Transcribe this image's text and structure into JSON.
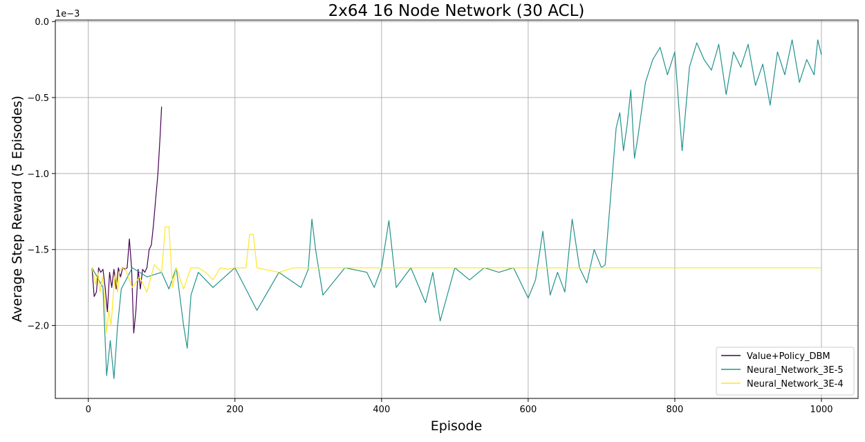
{
  "chart_data": {
    "type": "line",
    "title": "2x64 16 Node Network (30 ACL)",
    "xlabel": "Episode",
    "ylabel": "Average Step Reward (5 Episodes)",
    "y_offset_label": "1e−3",
    "xlim": [
      -45,
      1050
    ],
    "ylim": [
      -0.00248,
      1e-05
    ],
    "x_ticks": [
      0,
      200,
      400,
      600,
      800,
      1000
    ],
    "x_tick_labels": [
      "0",
      "200",
      "400",
      "600",
      "800",
      "1000"
    ],
    "y_ticks": [
      -0.002,
      -0.0015,
      -0.001,
      -0.0005,
      0.0
    ],
    "y_tick_labels": [
      "−2.0",
      "−1.5",
      "−1.0",
      "−0.5",
      "0.0"
    ],
    "grid": true,
    "legend_position": "bottom-right",
    "series": [
      {
        "name": "Value+Policy_DBM",
        "color": "#440154",
        "x": [
          5,
          8,
          11,
          14,
          17,
          20,
          23,
          26,
          29,
          32,
          35,
          38,
          41,
          44,
          47,
          50,
          53,
          56,
          59,
          62,
          65,
          68,
          71,
          74,
          77,
          80,
          83,
          86,
          89,
          92,
          95,
          98,
          100
        ],
        "y": [
          -0.00162,
          -0.00181,
          -0.00178,
          -0.00162,
          -0.00165,
          -0.00163,
          -0.00175,
          -0.00191,
          -0.00165,
          -0.00175,
          -0.00163,
          -0.00176,
          -0.00162,
          -0.00168,
          -0.00162,
          -0.00163,
          -0.00162,
          -0.00143,
          -0.00162,
          -0.00205,
          -0.0019,
          -0.00163,
          -0.00176,
          -0.00163,
          -0.00165,
          -0.00162,
          -0.0015,
          -0.00147,
          -0.00133,
          -0.00116,
          -0.001,
          -0.00075,
          -0.00056
        ]
      },
      {
        "name": "Neural_Network_3E-5",
        "color": "#21918c",
        "x": [
          5,
          20,
          25,
          30,
          35,
          40,
          45,
          60,
          80,
          100,
          110,
          120,
          130,
          135,
          140,
          150,
          170,
          200,
          230,
          260,
          290,
          300,
          305,
          310,
          320,
          350,
          380,
          390,
          400,
          410,
          420,
          440,
          460,
          470,
          480,
          500,
          520,
          540,
          560,
          580,
          600,
          610,
          620,
          630,
          640,
          650,
          660,
          670,
          680,
          690,
          700,
          705,
          710,
          715,
          720,
          725,
          730,
          735,
          740,
          745,
          750,
          760,
          770,
          780,
          790,
          800,
          810,
          820,
          830,
          840,
          850,
          860,
          870,
          880,
          890,
          900,
          910,
          920,
          930,
          940,
          950,
          960,
          970,
          980,
          990,
          995,
          1000
        ],
        "y": [
          -0.00162,
          -0.00175,
          -0.00233,
          -0.0021,
          -0.00235,
          -0.002,
          -0.00176,
          -0.00162,
          -0.00168,
          -0.00165,
          -0.00176,
          -0.00162,
          -0.002,
          -0.00215,
          -0.0018,
          -0.00165,
          -0.00175,
          -0.00162,
          -0.0019,
          -0.00165,
          -0.00175,
          -0.00163,
          -0.0013,
          -0.0015,
          -0.0018,
          -0.00162,
          -0.00165,
          -0.00175,
          -0.00162,
          -0.00131,
          -0.00175,
          -0.00162,
          -0.00185,
          -0.00165,
          -0.00197,
          -0.00162,
          -0.0017,
          -0.00162,
          -0.00165,
          -0.00162,
          -0.00182,
          -0.0017,
          -0.00138,
          -0.0018,
          -0.00165,
          -0.00178,
          -0.0013,
          -0.00162,
          -0.00172,
          -0.0015,
          -0.00162,
          -0.0016,
          -0.0013,
          -0.001,
          -0.0007,
          -0.0006,
          -0.00085,
          -0.00068,
          -0.00045,
          -0.0009,
          -0.00075,
          -0.0004,
          -0.00025,
          -0.00017,
          -0.00035,
          -0.0002,
          -0.00085,
          -0.0003,
          -0.00014,
          -0.00025,
          -0.00032,
          -0.00015,
          -0.00048,
          -0.0002,
          -0.0003,
          -0.00015,
          -0.00042,
          -0.00028,
          -0.00055,
          -0.0002,
          -0.00035,
          -0.00012,
          -0.0004,
          -0.00025,
          -0.00035,
          -0.00012,
          -0.00022
        ]
      },
      {
        "name": "Neural_Network_3E-4",
        "color": "#fde725",
        "x": [
          5,
          10,
          13,
          16,
          19,
          22,
          25,
          28,
          31,
          34,
          37,
          40,
          43,
          50,
          60,
          70,
          80,
          90,
          100,
          105,
          110,
          115,
          120,
          130,
          140,
          150,
          160,
          170,
          180,
          190,
          200,
          215,
          220,
          225,
          230,
          240,
          260,
          280,
          300,
          400,
          500,
          600,
          700,
          800,
          900,
          1000
        ],
        "y": [
          -0.00162,
          -0.00173,
          -0.00165,
          -0.00178,
          -0.00168,
          -0.0018,
          -0.00205,
          -0.0019,
          -0.002,
          -0.0018,
          -0.00165,
          -0.00178,
          -0.00163,
          -0.00162,
          -0.00175,
          -0.00168,
          -0.00178,
          -0.0016,
          -0.00165,
          -0.00135,
          -0.00135,
          -0.00175,
          -0.00162,
          -0.00176,
          -0.00162,
          -0.00162,
          -0.00165,
          -0.0017,
          -0.00162,
          -0.00163,
          -0.00162,
          -0.00162,
          -0.0014,
          -0.0014,
          -0.00162,
          -0.00163,
          -0.00165,
          -0.00162,
          -0.00162,
          -0.00162,
          -0.00162,
          -0.00162,
          -0.00162,
          -0.00162,
          -0.00162,
          -0.00162
        ]
      }
    ]
  }
}
